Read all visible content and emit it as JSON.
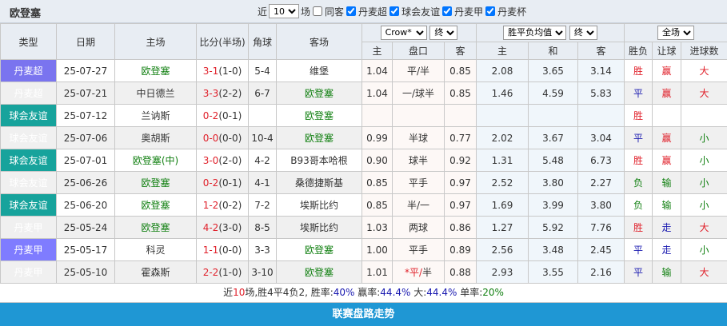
{
  "header": {
    "team": "欧登塞",
    "near_label": "近",
    "count": "10",
    "games_label": "场",
    "same_home": "同客",
    "filters": [
      "丹麦超",
      "球会友谊",
      "丹麦甲",
      "丹麦杯"
    ]
  },
  "columns": {
    "type": "类型",
    "date": "日期",
    "home": "主场",
    "score": "比分(半场)",
    "corner": "角球",
    "away": "客场",
    "company": "Crow*",
    "odds_state": "终",
    "avg": "胜平负均值",
    "avg_state": "终",
    "period": "全场",
    "h": "主",
    "line": "盘口",
    "a": "客",
    "oh": "主",
    "od": "和",
    "oa": "客",
    "res": "胜负",
    "hcp": "让球",
    "goals": "进球数"
  },
  "colors": {
    "丹麦超": "#7a74ef",
    "球会友谊": "#17a39c",
    "丹麦甲": "#7f7cff",
    "bar": "#1f97d4"
  },
  "rows": [
    {
      "type": "丹麦超",
      "t": "t1",
      "date": "25-07-27",
      "home": "欧登塞",
      "hg": true,
      "ft": "3-1",
      "ht": "(1-0)",
      "corner": "5-4",
      "away": "维堡",
      "ag": false,
      "h": "1.04",
      "line": "平/半",
      "a": "0.85",
      "oh": "2.08",
      "od": "3.65",
      "oa": "3.14",
      "res": "胜",
      "hcp": "赢",
      "goals": "大"
    },
    {
      "type": "丹麦超",
      "t": "t1",
      "date": "25-07-21",
      "home": "中日德兰",
      "hg": false,
      "ft": "3-3",
      "ht": "(2-2)",
      "corner": "6-7",
      "away": "欧登塞",
      "ag": true,
      "h": "1.04",
      "line": "一/球半",
      "a": "0.85",
      "oh": "1.46",
      "od": "4.59",
      "oa": "5.83",
      "res": "平",
      "hcp": "赢",
      "goals": "大"
    },
    {
      "type": "球会友谊",
      "t": "t2",
      "date": "25-07-12",
      "home": "兰讷斯",
      "hg": false,
      "ft": "0-2",
      "ht": "(0-1)",
      "corner": "",
      "away": "欧登塞",
      "ag": true,
      "h": "",
      "line": "",
      "a": "",
      "oh": "",
      "od": "",
      "oa": "",
      "res": "胜",
      "hcp": "",
      "goals": ""
    },
    {
      "type": "球会友谊",
      "t": "t2",
      "date": "25-07-06",
      "home": "奥胡斯",
      "hg": false,
      "ft": "0-0",
      "ht": "(0-0)",
      "corner": "10-4",
      "away": "欧登塞",
      "ag": true,
      "h": "0.99",
      "line": "半球",
      "a": "0.77",
      "oh": "2.02",
      "od": "3.67",
      "oa": "3.04",
      "res": "平",
      "hcp": "赢",
      "goals": "小"
    },
    {
      "type": "球会友谊",
      "t": "t2",
      "date": "25-07-01",
      "home": "欧登塞(中)",
      "hg": true,
      "ft": "3-0",
      "ht": "(2-0)",
      "corner": "4-2",
      "away": "B93哥本哈根",
      "ag": false,
      "h": "0.90",
      "line": "球半",
      "a": "0.92",
      "oh": "1.31",
      "od": "5.48",
      "oa": "6.73",
      "res": "胜",
      "hcp": "赢",
      "goals": "小"
    },
    {
      "type": "球会友谊",
      "t": "t2",
      "date": "25-06-26",
      "home": "欧登塞",
      "hg": true,
      "ft": "0-2",
      "ht": "(0-1)",
      "corner": "4-1",
      "away": "桑德捷斯基",
      "ag": false,
      "h": "0.85",
      "line": "平手",
      "a": "0.97",
      "oh": "2.52",
      "od": "3.80",
      "oa": "2.27",
      "res": "负",
      "hcp": "输",
      "goals": "小"
    },
    {
      "type": "球会友谊",
      "t": "t2",
      "date": "25-06-20",
      "home": "欧登塞",
      "hg": true,
      "ft": "1-2",
      "ht": "(0-2)",
      "corner": "7-2",
      "away": "埃斯比约",
      "ag": false,
      "h": "0.85",
      "line": "半/一",
      "a": "0.97",
      "oh": "1.69",
      "od": "3.99",
      "oa": "3.80",
      "res": "负",
      "hcp": "输",
      "goals": "小"
    },
    {
      "type": "丹麦甲",
      "t": "t3",
      "date": "25-05-24",
      "home": "欧登塞",
      "hg": true,
      "ft": "4-2",
      "ht": "(3-0)",
      "corner": "8-5",
      "away": "埃斯比约",
      "ag": false,
      "h": "1.03",
      "line": "两球",
      "a": "0.86",
      "oh": "1.27",
      "od": "5.92",
      "oa": "7.76",
      "res": "胜",
      "hcp": "走",
      "goals": "大"
    },
    {
      "type": "丹麦甲",
      "t": "t3",
      "date": "25-05-17",
      "home": "科灵",
      "hg": false,
      "ft": "1-1",
      "ht": "(0-0)",
      "corner": "3-3",
      "away": "欧登塞",
      "ag": true,
      "h": "1.00",
      "line": "平手",
      "a": "0.89",
      "oh": "2.56",
      "od": "3.48",
      "oa": "2.45",
      "res": "平",
      "hcp": "走",
      "goals": "小"
    },
    {
      "type": "丹麦甲",
      "t": "t3",
      "date": "25-05-10",
      "home": "霍森斯",
      "hg": false,
      "ft": "2-2",
      "ht": "(1-0)",
      "corner": "3-10",
      "away": "欧登塞",
      "ag": true,
      "h": "1.01",
      "line": "*平/半",
      "a": "0.88",
      "oh": "2.93",
      "od": "3.55",
      "oa": "2.16",
      "res": "平",
      "hcp": "输",
      "goals": "大"
    }
  ],
  "summary": {
    "p1": "近",
    "n": "10",
    "p2": "场,胜4平4负2, 胜率:",
    "win": "40%",
    "p3": " 赢率:",
    "hcpwin": "44.4%",
    "p4": " 大:",
    "big": "44.4%",
    "p5": " 单率:",
    "odd": "20%"
  },
  "footer": "联赛盘路走势"
}
